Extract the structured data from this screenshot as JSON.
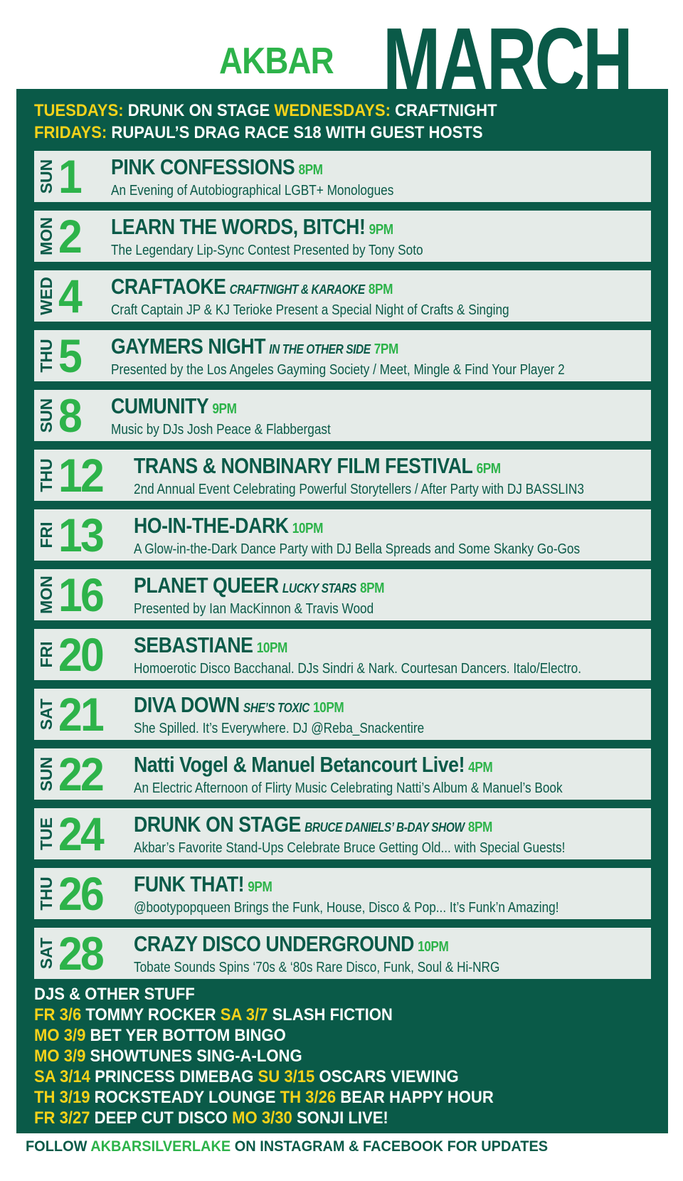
{
  "header": {
    "venue": "AKBAR",
    "month": "MARCH"
  },
  "recurring": [
    [
      {
        "day": "TUESDAYS:",
        "event": "DRUNK ON STAGE"
      },
      {
        "day": "WEDNESDAYS:",
        "event": "CRAFTNIGHT"
      }
    ],
    [
      {
        "day": "FRIDAYS:",
        "event": "RUPAUL’S DRAG RACE S18 WITH GUEST HOSTS"
      }
    ]
  ],
  "events": [
    {
      "dow": "SUN",
      "date": "1",
      "title": "PINK CONFESSIONS",
      "time": "8PM",
      "description": "An Evening of Autobiographical LGBT+ Monologues"
    },
    {
      "dow": "MON",
      "date": "2",
      "title": "LEARN THE WORDS, BITCH!",
      "time": "9PM",
      "description": "The Legendary Lip-Sync Contest Presented by Tony Soto"
    },
    {
      "dow": "WED",
      "date": "4",
      "title": "CRAFTAOKE",
      "tag": "CRAFTNIGHT & KARAOKE",
      "time": "8PM",
      "description": "Craft Captain JP & KJ Terioke Present a Special Night of Crafts & Singing"
    },
    {
      "dow": "THU",
      "date": "5",
      "title": "GAYMERS NIGHT",
      "tag": "IN THE OTHER SIDE",
      "time": "7PM",
      "description": "Presented by the Los Angeles Gayming Society / Meet, Mingle & Find Your Player 2"
    },
    {
      "dow": "SUN",
      "date": "8",
      "title": "CUMUNITY",
      "time": "9PM",
      "description": "Music by DJs Josh Peace & Flabbergast"
    },
    {
      "dow": "THU",
      "date": "12",
      "title": "TRANS & NONBINARY FILM FESTIVAL",
      "time": "6PM",
      "description": "2nd Annual Event Celebrating Powerful Storytellers / After Party with DJ BASSLIN3"
    },
    {
      "dow": "FRI",
      "date": "13",
      "title": "HO-IN-THE-DARK",
      "time": "10PM",
      "description": "A Glow-in-the-Dark Dance Party with DJ Bella Spreads and Some Skanky Go-Gos"
    },
    {
      "dow": "MON",
      "date": "16",
      "title": "PLANET QUEER",
      "tag": "LUCKY STARS",
      "time": "8PM",
      "description": "Presented by Ian MacKinnon & Travis Wood"
    },
    {
      "dow": "FRI",
      "date": "20",
      "title": "SEBASTIANE",
      "time": "10PM",
      "description": "Homoerotic Disco Bacchanal. DJs Sindri & Nark. Courtesan Dancers. Italo/Electro."
    },
    {
      "dow": "SAT",
      "date": "21",
      "title": "DIVA DOWN",
      "tag": "SHE’S TOXIC",
      "time": "10PM",
      "description": "She Spilled. It’s Everywhere. DJ @Reba_Snackentire"
    },
    {
      "dow": "SUN",
      "date": "22",
      "title": "Natti Vogel & Manuel Betancourt Live!",
      "time": "4PM",
      "description": "An Electric Afternoon of Flirty Music Celebrating Natti’s Album & Manuel’s Book"
    },
    {
      "dow": "TUE",
      "date": "24",
      "title": "DRUNK ON STAGE",
      "tag": "BRUCE DANIELS’ B-DAY SHOW",
      "time": "8PM",
      "description": "Akbar’s Favorite Stand-Ups Celebrate Bruce Getting Old... with Special Guests!"
    },
    {
      "dow": "THU",
      "date": "26",
      "title": "FUNK THAT!",
      "time": "9PM",
      "description": "@bootypopqueen Brings the Funk, House, Disco & Pop... It’s Funk’n Amazing!"
    },
    {
      "dow": "SAT",
      "date": "28",
      "title": "CRAZY DISCO UNDERGROUND",
      "time": "10PM",
      "description": "Tobate Sounds Spins ‘70s & ‘80s Rare Disco, Funk, Soul & Hi-NRG"
    }
  ],
  "other": {
    "title": "DJS & OTHER STUFF",
    "lines": [
      [
        {
          "date": "FR 3/6",
          "event": "TOMMY ROCKER"
        },
        {
          "date": "SA 3/7",
          "event": "SLASH FICTION"
        }
      ],
      [
        {
          "date": "MO 3/9",
          "event": "BET YER BOTTOM BINGO"
        }
      ],
      [
        {
          "date": "MO 3/9",
          "event": "SHOWTUNES SING-A-LONG"
        }
      ],
      [
        {
          "date": "SA 3/14",
          "event": "PRINCESS DIMEBAG"
        },
        {
          "date": "SU 3/15",
          "event": "OSCARS VIEWING"
        }
      ],
      [
        {
          "date": "TH 3/19",
          "event": "ROCKSTEADY LOUNGE"
        },
        {
          "date": "TH 3/26",
          "event": "BEAR HAPPY HOUR"
        }
      ],
      [
        {
          "date": "FR 3/27",
          "event": "DEEP CUT DISCO"
        },
        {
          "date": "MO 3/30",
          "event": "SONJI LIVE!"
        }
      ]
    ]
  },
  "footer": {
    "lead": "FOLLOW",
    "handle": "AKBARSILVERLAKE",
    "rest": "ON INSTAGRAM & FACEBOOK FOR UPDATES"
  }
}
